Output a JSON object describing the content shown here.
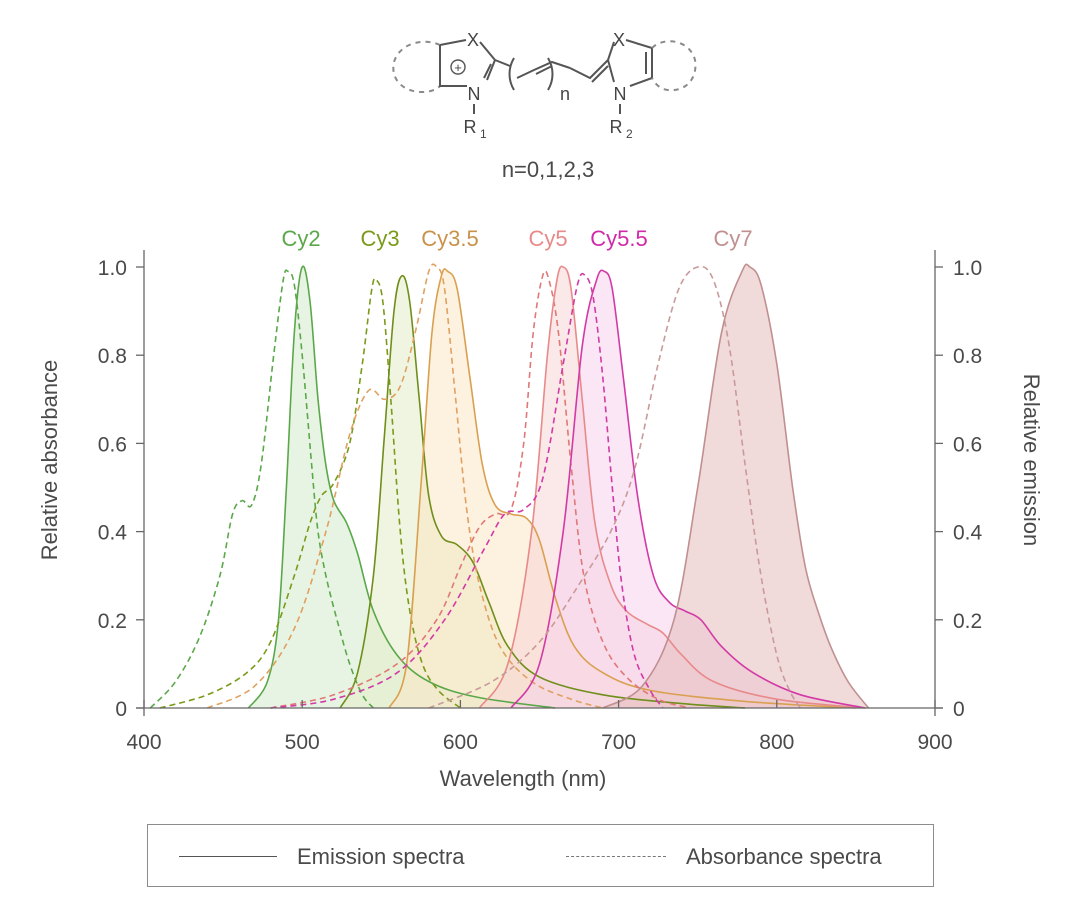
{
  "structure": {
    "atom_x_left": "X",
    "atom_n_left": "N",
    "sub_r1": "R",
    "sub_r1_index": "1",
    "atom_x_right": "X",
    "atom_n_right": "N",
    "sub_r2": "R",
    "sub_r2_index": "2",
    "charge": "+",
    "repeat_label": "n",
    "caption": "n=0,1,2,3"
  },
  "legend": {
    "emission_label": "Emission spectra",
    "absorbance_label": "Absorbance spectra"
  },
  "chart_data": {
    "type": "line",
    "title": "",
    "xlabel": "Wavelength (nm)",
    "ylabel": "Relative absorbance",
    "ylabel_right": "Relative emission",
    "xlim": [
      400,
      900
    ],
    "ylim": [
      0,
      1.0
    ],
    "xticks": [
      400,
      500,
      600,
      700,
      800,
      900
    ],
    "yticks": [
      0,
      0.2,
      0.4,
      0.6,
      0.8,
      1.0
    ],
    "ytick_labels": [
      "0",
      "0.2",
      "0.4",
      "0.6",
      "0.8",
      "1.0"
    ],
    "grid": false,
    "legend_position": "bottom",
    "dye_labels": [
      {
        "name": "Cy2",
        "x": 500,
        "color": "#5aa84a"
      },
      {
        "name": "Cy3",
        "x": 563,
        "color": "#7a9a1a"
      },
      {
        "name": "Cy3.5",
        "x": 592,
        "color": "#c9924a"
      },
      {
        "name": "Cy5",
        "x": 664,
        "color": "#e88a8a"
      },
      {
        "name": "Cy5.5",
        "x": 691,
        "color": "#d12aa8"
      },
      {
        "name": "Cy7",
        "x": 783,
        "color": "#c09090"
      }
    ],
    "series": [
      {
        "name": "Cy2 absorbance",
        "dye": "Cy2",
        "kind": "absorbance",
        "color": "#5aa84a",
        "points": [
          [
            404,
            0
          ],
          [
            420,
            0.06
          ],
          [
            435,
            0.16
          ],
          [
            448,
            0.3
          ],
          [
            456,
            0.44
          ],
          [
            462,
            0.47
          ],
          [
            468,
            0.46
          ],
          [
            474,
            0.55
          ],
          [
            482,
            0.8
          ],
          [
            488,
            0.97
          ],
          [
            491,
            0.99
          ],
          [
            495,
            0.96
          ],
          [
            500,
            0.8
          ],
          [
            506,
            0.55
          ],
          [
            510,
            0.4
          ],
          [
            515,
            0.3
          ],
          [
            522,
            0.2
          ],
          [
            530,
            0.1
          ],
          [
            538,
            0.03
          ],
          [
            545,
            0
          ]
        ]
      },
      {
        "name": "Cy2 emission",
        "dye": "Cy2",
        "kind": "emission",
        "color": "#5aa84a",
        "fill": "#d6ebcc",
        "points": [
          [
            466,
            0
          ],
          [
            478,
            0.06
          ],
          [
            485,
            0.2
          ],
          [
            490,
            0.5
          ],
          [
            495,
            0.85
          ],
          [
            500,
            1.0
          ],
          [
            505,
            0.92
          ],
          [
            510,
            0.7
          ],
          [
            515,
            0.55
          ],
          [
            520,
            0.47
          ],
          [
            528,
            0.42
          ],
          [
            535,
            0.35
          ],
          [
            545,
            0.22
          ],
          [
            560,
            0.12
          ],
          [
            580,
            0.06
          ],
          [
            610,
            0.025
          ],
          [
            660,
            0
          ]
        ]
      },
      {
        "name": "Cy3 absorbance",
        "dye": "Cy3",
        "kind": "absorbance",
        "color": "#7a9a1a",
        "points": [
          [
            410,
            0
          ],
          [
            440,
            0.03
          ],
          [
            465,
            0.08
          ],
          [
            480,
            0.15
          ],
          [
            495,
            0.3
          ],
          [
            505,
            0.42
          ],
          [
            512,
            0.48
          ],
          [
            520,
            0.51
          ],
          [
            530,
            0.6
          ],
          [
            538,
            0.78
          ],
          [
            544,
            0.95
          ],
          [
            547,
            0.97
          ],
          [
            551,
            0.92
          ],
          [
            556,
            0.7
          ],
          [
            562,
            0.4
          ],
          [
            568,
            0.22
          ],
          [
            576,
            0.1
          ],
          [
            586,
            0.04
          ],
          [
            600,
            0
          ]
        ]
      },
      {
        "name": "Cy3 emission",
        "dye": "Cy3",
        "kind": "emission",
        "color": "#6f8e1a",
        "fill": "#e4edc8",
        "points": [
          [
            524,
            0
          ],
          [
            535,
            0.08
          ],
          [
            545,
            0.3
          ],
          [
            552,
            0.62
          ],
          [
            558,
            0.9
          ],
          [
            563,
            0.98
          ],
          [
            568,
            0.92
          ],
          [
            574,
            0.7
          ],
          [
            580,
            0.48
          ],
          [
            588,
            0.39
          ],
          [
            598,
            0.37
          ],
          [
            608,
            0.33
          ],
          [
            618,
            0.24
          ],
          [
            630,
            0.14
          ],
          [
            650,
            0.07
          ],
          [
            690,
            0.03
          ],
          [
            740,
            0.01
          ],
          [
            780,
            0
          ]
        ]
      },
      {
        "name": "Cy3.5 absorbance",
        "dye": "Cy3.5",
        "kind": "absorbance",
        "color": "#e0a060",
        "points": [
          [
            440,
            0
          ],
          [
            470,
            0.05
          ],
          [
            495,
            0.18
          ],
          [
            515,
            0.4
          ],
          [
            530,
            0.62
          ],
          [
            542,
            0.72
          ],
          [
            552,
            0.7
          ],
          [
            562,
            0.73
          ],
          [
            572,
            0.86
          ],
          [
            580,
            0.99
          ],
          [
            585,
            1.0
          ],
          [
            590,
            0.95
          ],
          [
            597,
            0.7
          ],
          [
            604,
            0.45
          ],
          [
            612,
            0.28
          ],
          [
            625,
            0.14
          ],
          [
            645,
            0.06
          ],
          [
            670,
            0.02
          ],
          [
            690,
            0
          ]
        ]
      },
      {
        "name": "Cy3.5 emission",
        "dye": "Cy3.5",
        "kind": "emission",
        "color": "#d9a050",
        "fill": "#fbe6c4",
        "points": [
          [
            555,
            0
          ],
          [
            566,
            0.1
          ],
          [
            575,
            0.5
          ],
          [
            582,
            0.85
          ],
          [
            588,
            0.98
          ],
          [
            592,
            0.99
          ],
          [
            598,
            0.95
          ],
          [
            606,
            0.75
          ],
          [
            614,
            0.55
          ],
          [
            622,
            0.46
          ],
          [
            632,
            0.44
          ],
          [
            642,
            0.43
          ],
          [
            650,
            0.38
          ],
          [
            660,
            0.25
          ],
          [
            672,
            0.14
          ],
          [
            690,
            0.08
          ],
          [
            720,
            0.04
          ],
          [
            780,
            0.015
          ],
          [
            850,
            0
          ]
        ]
      },
      {
        "name": "Cy5 absorbance",
        "dye": "Cy5",
        "kind": "absorbance",
        "color": "#e07878",
        "points": [
          [
            480,
            0
          ],
          [
            520,
            0.03
          ],
          [
            560,
            0.1
          ],
          [
            585,
            0.2
          ],
          [
            600,
            0.32
          ],
          [
            612,
            0.41
          ],
          [
            622,
            0.44
          ],
          [
            632,
            0.45
          ],
          [
            640,
            0.6
          ],
          [
            646,
            0.85
          ],
          [
            652,
            0.98
          ],
          [
            656,
            0.97
          ],
          [
            662,
            0.85
          ],
          [
            670,
            0.55
          ],
          [
            678,
            0.3
          ],
          [
            690,
            0.15
          ],
          [
            705,
            0.07
          ],
          [
            725,
            0.02
          ],
          [
            745,
            0
          ]
        ]
      },
      {
        "name": "Cy5 emission",
        "dye": "Cy5",
        "kind": "emission",
        "color": "#e88a8a",
        "fill": "#f8d6d6",
        "points": [
          [
            612,
            0
          ],
          [
            630,
            0.1
          ],
          [
            645,
            0.4
          ],
          [
            655,
            0.8
          ],
          [
            661,
            0.97
          ],
          [
            665,
            1.0
          ],
          [
            670,
            0.95
          ],
          [
            677,
            0.7
          ],
          [
            685,
            0.42
          ],
          [
            695,
            0.28
          ],
          [
            705,
            0.22
          ],
          [
            718,
            0.19
          ],
          [
            728,
            0.17
          ],
          [
            740,
            0.12
          ],
          [
            760,
            0.06
          ],
          [
            800,
            0.02
          ],
          [
            855,
            0
          ]
        ]
      },
      {
        "name": "Cy5.5 absorbance",
        "dye": "Cy5.5",
        "kind": "absorbance",
        "color": "#d23aa6",
        "points": [
          [
            480,
            0
          ],
          [
            520,
            0.02
          ],
          [
            560,
            0.08
          ],
          [
            590,
            0.2
          ],
          [
            615,
            0.36
          ],
          [
            628,
            0.44
          ],
          [
            640,
            0.45
          ],
          [
            652,
            0.52
          ],
          [
            665,
            0.78
          ],
          [
            674,
            0.96
          ],
          [
            679,
            0.98
          ],
          [
            684,
            0.93
          ],
          [
            690,
            0.75
          ],
          [
            696,
            0.5
          ],
          [
            702,
            0.28
          ],
          [
            710,
            0.12
          ],
          [
            720,
            0.04
          ],
          [
            728,
            0
          ]
        ]
      },
      {
        "name": "Cy5.5 emission",
        "dye": "Cy5.5",
        "kind": "emission",
        "color": "#d23aa6",
        "fill": "#f6d2ec",
        "points": [
          [
            632,
            0
          ],
          [
            650,
            0.1
          ],
          [
            665,
            0.4
          ],
          [
            677,
            0.82
          ],
          [
            686,
            0.97
          ],
          [
            691,
            0.99
          ],
          [
            696,
            0.95
          ],
          [
            703,
            0.75
          ],
          [
            712,
            0.48
          ],
          [
            722,
            0.3
          ],
          [
            732,
            0.24
          ],
          [
            742,
            0.22
          ],
          [
            752,
            0.2
          ],
          [
            765,
            0.14
          ],
          [
            785,
            0.08
          ],
          [
            815,
            0.03
          ],
          [
            856,
            0
          ]
        ]
      },
      {
        "name": "Cy7 absorbance",
        "dye": "Cy7",
        "kind": "absorbance",
        "color": "#c99a9a",
        "points": [
          [
            580,
            0
          ],
          [
            620,
            0.06
          ],
          [
            650,
            0.15
          ],
          [
            675,
            0.28
          ],
          [
            695,
            0.4
          ],
          [
            710,
            0.54
          ],
          [
            725,
            0.78
          ],
          [
            738,
            0.95
          ],
          [
            750,
            1.0
          ],
          [
            760,
            0.97
          ],
          [
            770,
            0.82
          ],
          [
            780,
            0.55
          ],
          [
            790,
            0.3
          ],
          [
            800,
            0.12
          ],
          [
            808,
            0.04
          ],
          [
            815,
            0
          ]
        ]
      },
      {
        "name": "Cy7 emission",
        "dye": "Cy7",
        "kind": "emission",
        "color": "#c09090",
        "fill": "#e5bcbc",
        "points": [
          [
            690,
            0
          ],
          [
            715,
            0.05
          ],
          [
            735,
            0.2
          ],
          [
            750,
            0.5
          ],
          [
            765,
            0.85
          ],
          [
            778,
            0.99
          ],
          [
            783,
            1.0
          ],
          [
            790,
            0.96
          ],
          [
            800,
            0.78
          ],
          [
            810,
            0.5
          ],
          [
            818,
            0.32
          ],
          [
            826,
            0.22
          ],
          [
            834,
            0.14
          ],
          [
            845,
            0.06
          ],
          [
            858,
            0
          ]
        ]
      }
    ]
  }
}
